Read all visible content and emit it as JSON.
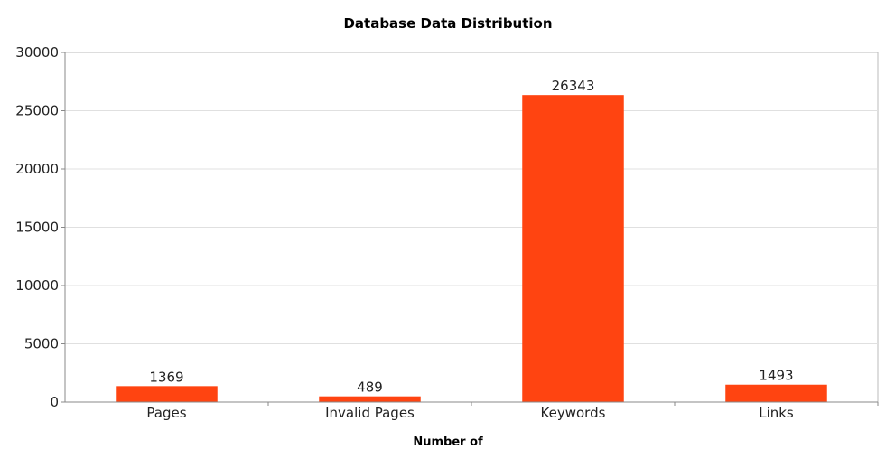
{
  "chart_data": {
    "type": "bar",
    "title": "Database Data Distribution",
    "xlabel": "Number of",
    "ylabel": "",
    "categories": [
      "Pages",
      "Invalid Pages",
      "Keywords",
      "Links"
    ],
    "values": [
      1369,
      489,
      26343,
      1493
    ],
    "data_labels": [
      "1369",
      "489",
      "26343",
      "1493"
    ],
    "ylim": [
      0,
      30000
    ],
    "yticks": [
      0,
      5000,
      10000,
      15000,
      20000,
      25000,
      30000
    ],
    "ytick_labels": [
      "0",
      "5000",
      "10000",
      "15000",
      "20000",
      "25000",
      "30000"
    ],
    "grid": true,
    "legend": "none",
    "bar_color": "#ff4411"
  }
}
